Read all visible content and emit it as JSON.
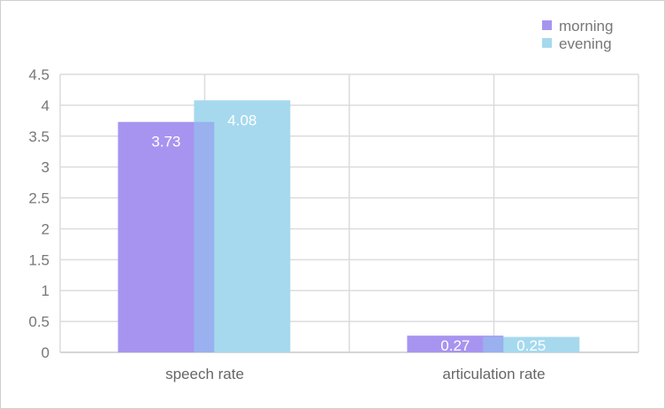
{
  "chart_data": {
    "type": "bar",
    "categories": [
      "speech rate",
      "articulation rate"
    ],
    "series": [
      {
        "name": "morning",
        "values": [
          3.73,
          0.27
        ],
        "labels": [
          "3.73",
          "0.27"
        ],
        "color": "#a794f0"
      },
      {
        "name": "evening",
        "values": [
          4.08,
          0.25
        ],
        "labels": [
          "4.08",
          "0.25"
        ],
        "color": "#a6d9ee"
      }
    ],
    "ylim": [
      0,
      4.5
    ],
    "yticks": [
      "0",
      "0.5",
      "1",
      "1.5",
      "2",
      "2.5",
      "3",
      "3.5",
      "4",
      "4.5"
    ],
    "grid": true,
    "legend_position": "top-right",
    "overlap_color": "#99b1ee"
  }
}
